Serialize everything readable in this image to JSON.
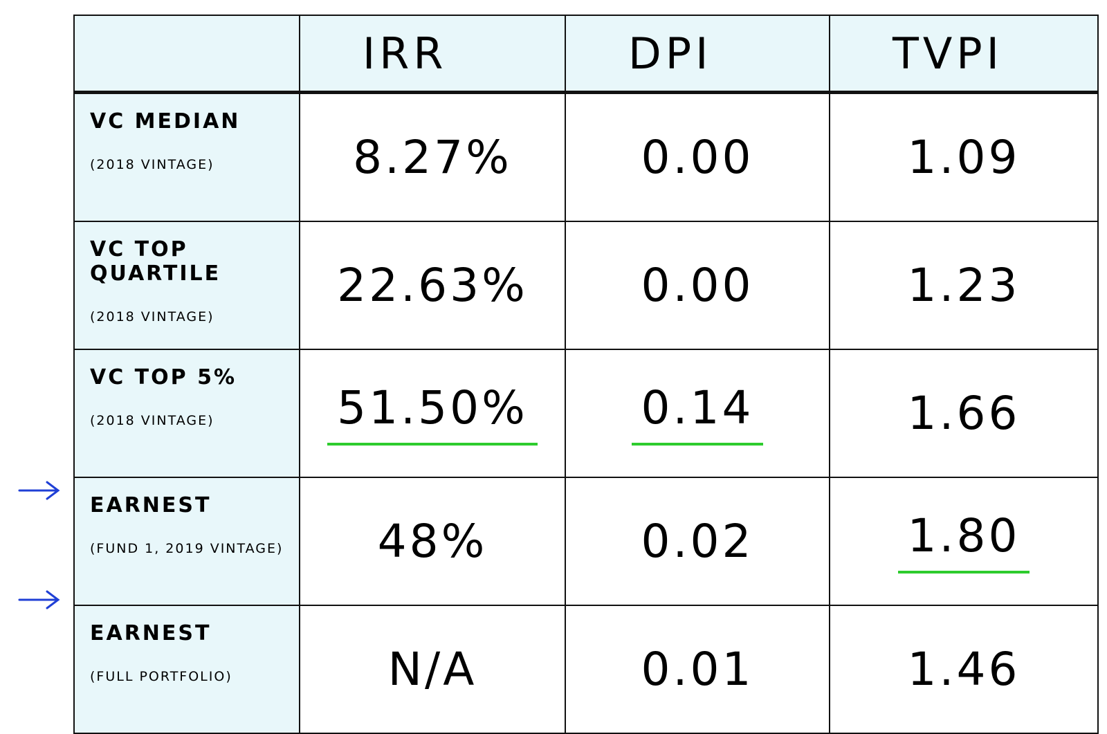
{
  "table": {
    "columns": [
      "IRR",
      "DPI",
      "TVPI"
    ],
    "rows": [
      {
        "label": "VC MEDIAN",
        "sublabel": "(2018 VINTAGE)",
        "values": [
          "8.27%",
          "0.00",
          "1.09"
        ]
      },
      {
        "label": "VC TOP QUARTILE",
        "sublabel": "(2018 VINTAGE)",
        "values": [
          "22.63%",
          "0.00",
          "1.23"
        ]
      },
      {
        "label": "VC TOP 5%",
        "sublabel": "(2018 VINTAGE)",
        "values": [
          "51.50%",
          "0.14",
          "1.66"
        ]
      },
      {
        "label": "EARNEST",
        "sublabel": "(FUND 1, 2019 VINTAGE)",
        "values": [
          "48%",
          "0.02",
          "1.80"
        ]
      },
      {
        "label": "EARNEST",
        "sublabel": "(FULL PORTFOLIO)",
        "values": [
          "N/A",
          "0.01",
          "1.46"
        ]
      }
    ]
  }
}
